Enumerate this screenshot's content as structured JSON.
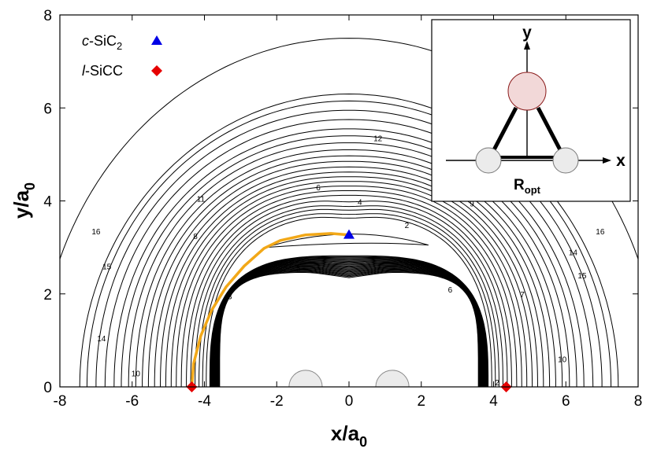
{
  "chart_data": {
    "type": "contour",
    "xlim": [
      -8,
      8
    ],
    "ylim": [
      0,
      8
    ],
    "xticks": [
      -8,
      -6,
      -4,
      -2,
      0,
      2,
      4,
      6,
      8
    ],
    "yticks": [
      0,
      2,
      4,
      6,
      8
    ],
    "tick_labels_x": [
      "-8",
      "-6",
      "-4",
      "-2",
      "0",
      "2",
      "4",
      "6",
      "8"
    ],
    "tick_labels_y": [
      "0",
      "2",
      "4",
      "6",
      "8"
    ],
    "xlabel": {
      "main": "x/a",
      "sub": "0"
    },
    "ylabel": {
      "main": "y/a",
      "sub": "0"
    },
    "contour_levels": [
      1,
      2,
      3,
      4,
      5,
      6,
      7,
      8,
      9,
      10,
      11,
      12,
      13,
      14,
      15,
      16
    ],
    "contour_labels": [
      {
        "text": "12",
        "x": 0.8,
        "y": 5.35
      },
      {
        "text": "6",
        "x": -0.85,
        "y": 4.3
      },
      {
        "text": "4",
        "x": 0.3,
        "y": 3.98
      },
      {
        "text": "2",
        "x": 1.6,
        "y": 3.48
      },
      {
        "text": "11",
        "x": -4.1,
        "y": 4.05
      },
      {
        "text": "9",
        "x": 3.4,
        "y": 3.95
      },
      {
        "text": "8",
        "x": -4.25,
        "y": 3.25
      },
      {
        "text": "16",
        "x": -7.0,
        "y": 3.35
      },
      {
        "text": "16",
        "x": 6.95,
        "y": 3.35
      },
      {
        "text": "15",
        "x": -6.7,
        "y": 2.6
      },
      {
        "text": "15",
        "x": 6.45,
        "y": 2.4
      },
      {
        "text": "14",
        "x": 6.2,
        "y": 2.9
      },
      {
        "text": "14",
        "x": -6.85,
        "y": 1.05
      },
      {
        "text": "10",
        "x": -5.9,
        "y": 0.3
      },
      {
        "text": "10",
        "x": 5.9,
        "y": 0.6
      },
      {
        "text": "7",
        "x": 4.8,
        "y": 2.0
      },
      {
        "text": "6",
        "x": 2.8,
        "y": 2.1
      },
      {
        "text": "3",
        "x": -3.3,
        "y": 1.95
      },
      {
        "text": "5",
        "x": -3.75,
        "y": 1.05
      },
      {
        "text": "4",
        "x": 3.65,
        "y": 1.0
      },
      {
        "text": "2",
        "x": 4.1,
        "y": 0.1
      },
      {
        "text": "5",
        "x": -1.4,
        "y": 2.55
      }
    ],
    "series": [
      {
        "name": "c-SiC2",
        "marker": "triangle",
        "color": "#0000e6",
        "x": [
          0
        ],
        "y": [
          3.27
        ]
      },
      {
        "name": "l-SiCC",
        "marker": "diamond",
        "color": "#e60000",
        "x": [
          -4.35,
          4.35
        ],
        "y": [
          0,
          0
        ]
      }
    ],
    "path": {
      "color": "#f2a818",
      "x": [
        -4.35,
        -4.3,
        -4.1,
        -3.8,
        -3.4,
        -2.9,
        -2.35,
        -1.9,
        -1.2,
        -0.5,
        0
      ],
      "y": [
        0.0,
        0.5,
        1.1,
        1.65,
        2.15,
        2.6,
        2.98,
        3.15,
        3.27,
        3.3,
        3.27
      ]
    },
    "atoms_on_axis": [
      {
        "x": -1.2,
        "r": 0.46
      },
      {
        "x": 1.2,
        "r": 0.46
      }
    ]
  },
  "legend": {
    "item1": {
      "prefix": "c",
      "main": "-SiC",
      "sub": "2"
    },
    "item2": {
      "prefix": "l",
      "main": "-SiCC"
    }
  },
  "inset": {
    "y_label": "y",
    "x_label": "x",
    "r_label": "R",
    "r_sub": "opt"
  },
  "colors": {
    "contour": "#000000",
    "path": "#f2a818",
    "triangle": "#0000e6",
    "diamond": "#e60000",
    "atom_si": "#f2d8d8",
    "atom_c": "#ebebeb"
  }
}
